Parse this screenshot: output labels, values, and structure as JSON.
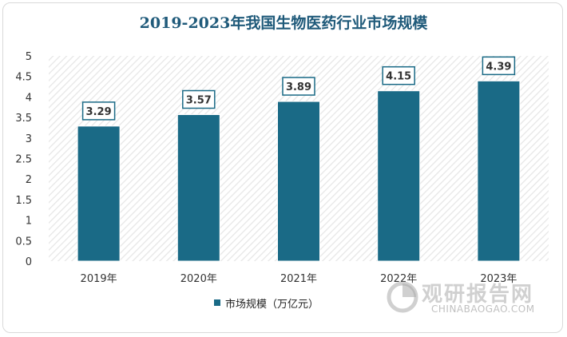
{
  "chart_data": {
    "type": "bar",
    "title": "2019-2023年我国生物医药行业市场规模",
    "categories": [
      "2019年",
      "2020年",
      "2021年",
      "2022年",
      "2023年"
    ],
    "series": [
      {
        "name": "市场规模（万亿元）",
        "values": [
          3.29,
          3.57,
          3.89,
          4.15,
          4.39
        ]
      }
    ],
    "ylim": [
      0,
      5
    ],
    "yticks": [
      "0",
      "0.5",
      "1",
      "1.5",
      "2",
      "2.5",
      "3",
      "3.5",
      "4",
      "4.5",
      "5"
    ],
    "xlabel": "",
    "ylabel": "",
    "grid": false,
    "legend_position": "bottom",
    "colors": {
      "bar": "#1a6a86",
      "label_border": "#1a6a86",
      "title": "#1f5a7a"
    }
  },
  "watermark": {
    "brand": "观研报告网",
    "site": "CHINABAOGAO.COM"
  }
}
